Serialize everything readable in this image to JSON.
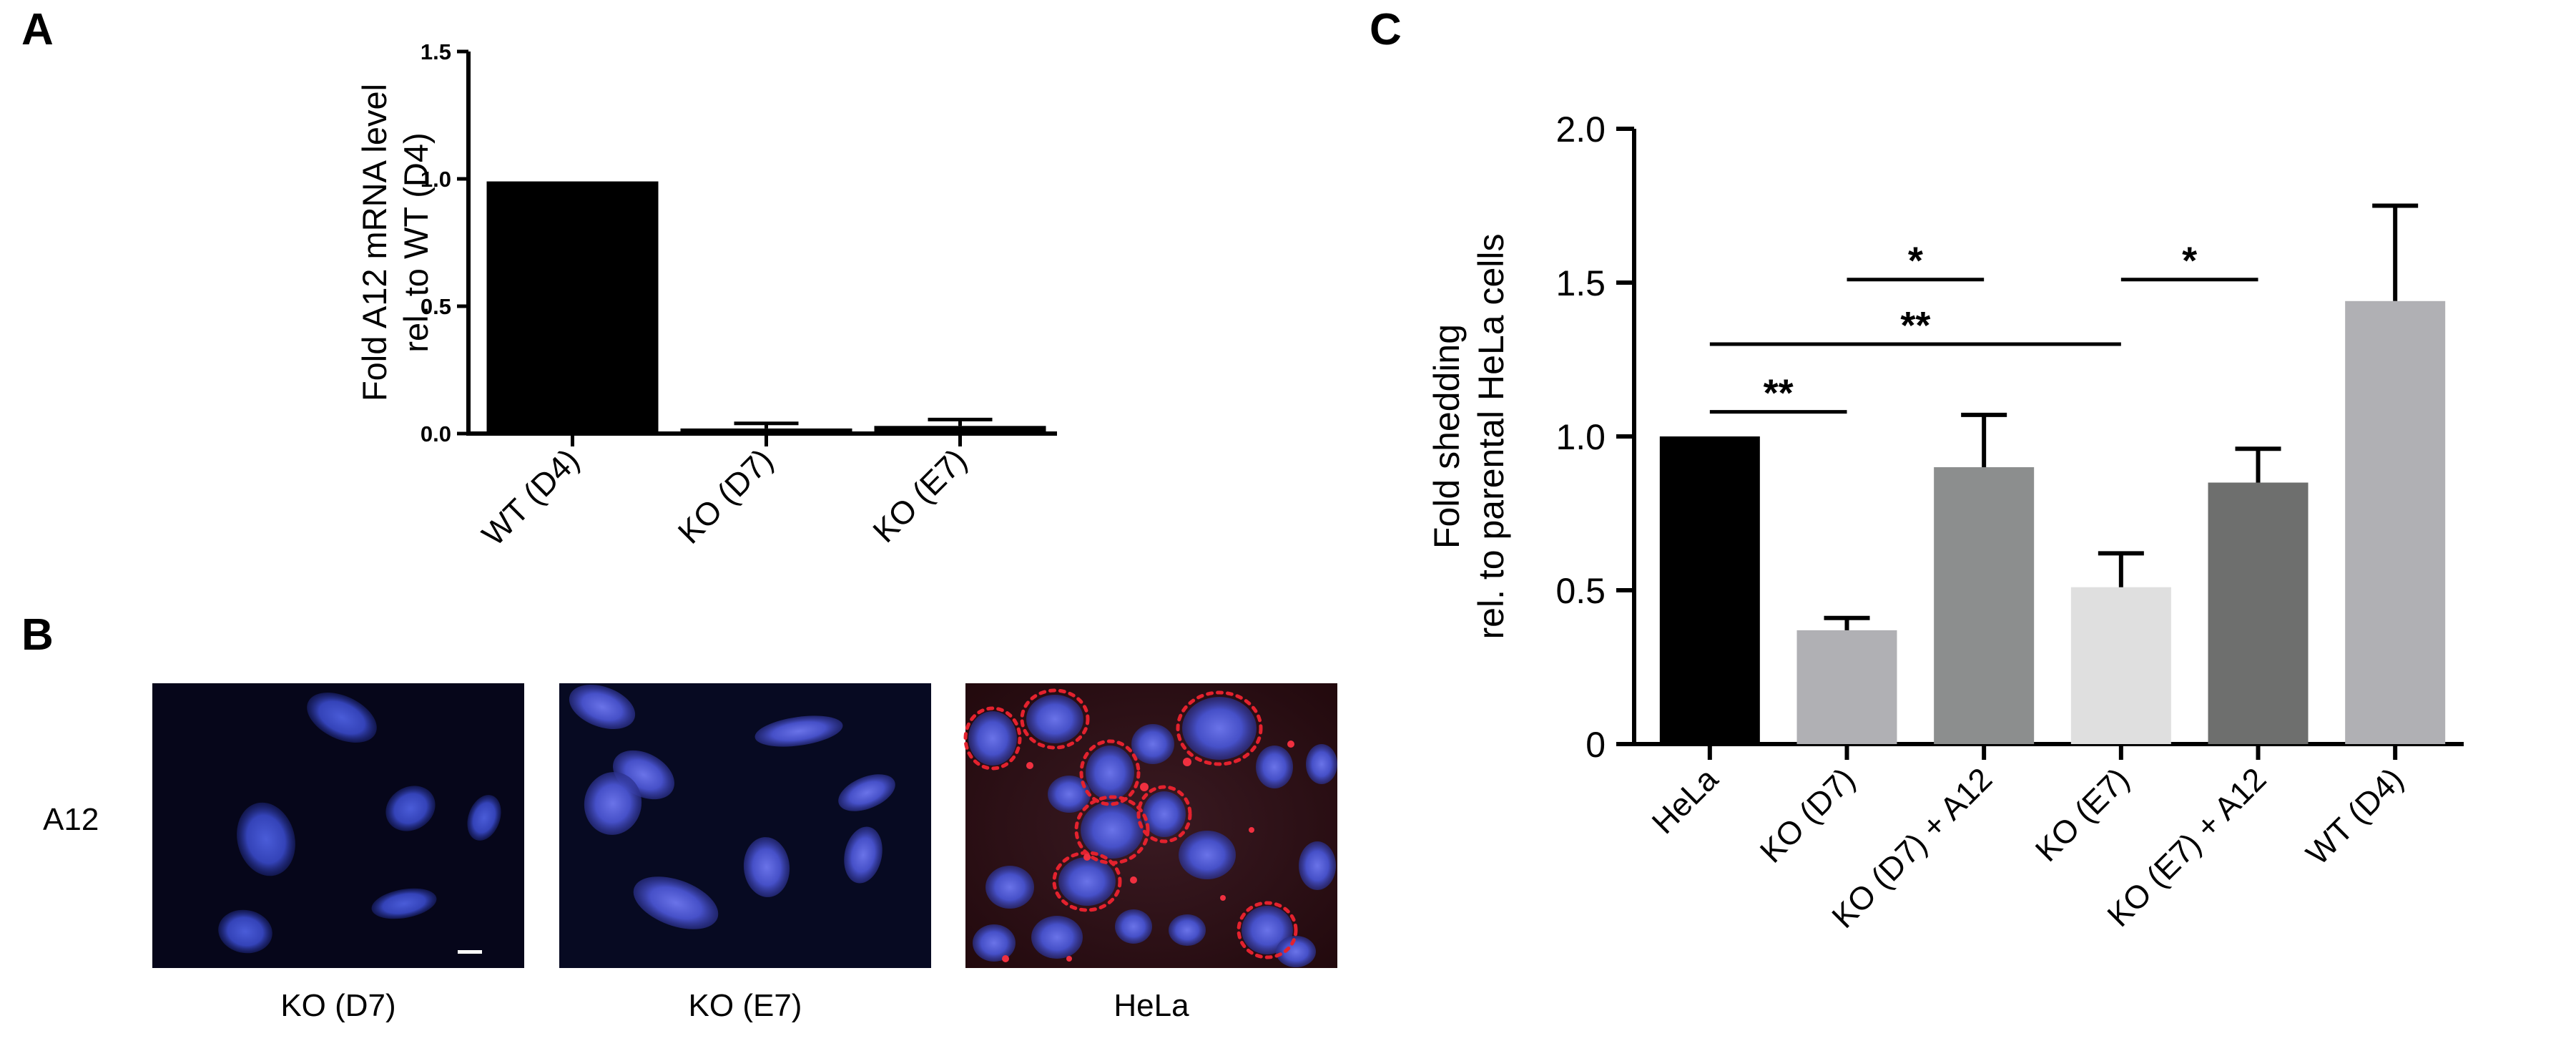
{
  "panels": {
    "a_letter": "A",
    "b_letter": "B",
    "c_letter": "C"
  },
  "chart_data": [
    {
      "panel": "A",
      "type": "bar",
      "categories": [
        "WT (D4)",
        "KO (D7)",
        "KO (E7)"
      ],
      "values": [
        0.99,
        0.02,
        0.03
      ],
      "errors": [
        0.0,
        0.02,
        0.025
      ],
      "ylabel_line1": "Fold A12 mRNA level",
      "ylabel_line2": "rel. to WT (D4)",
      "ylim": [
        0,
        1.5
      ],
      "yticks": [
        "0.0",
        "0.5",
        "1.0",
        "1.5"
      ],
      "bar_color": "#000000"
    },
    {
      "panel": "C",
      "type": "bar",
      "categories": [
        "HeLa",
        "KO (D7)",
        "KO (D7) + A12",
        "KO (E7)",
        "KO (E7) + A12",
        "WT (D4)"
      ],
      "values": [
        1.0,
        0.37,
        0.9,
        0.51,
        0.85,
        1.44
      ],
      "errors": [
        0.0,
        0.04,
        0.17,
        0.11,
        0.11,
        0.31
      ],
      "colors": [
        "#000000",
        "#b0b0b4",
        "#8c8e8e",
        "#dfdfdf",
        "#6e6f6e",
        "#b0b0b4"
      ],
      "ylabel_line1": "Fold shedding",
      "ylabel_line2": "rel. to parental HeLa cells",
      "ylim": [
        0,
        2.0
      ],
      "yticks": [
        "0",
        "0.5",
        "1.0",
        "1.5",
        "2.0"
      ],
      "significance": [
        {
          "from": 0,
          "to": 1,
          "label": "**"
        },
        {
          "from": 0,
          "to": 3,
          "label": "**"
        },
        {
          "from": 1,
          "to": 2,
          "label": "*"
        },
        {
          "from": 3,
          "to": 4,
          "label": "*"
        }
      ]
    }
  ],
  "microscopy": {
    "row_label": "A12",
    "images": [
      {
        "caption": "KO (D7)"
      },
      {
        "caption": "KO (E7)"
      },
      {
        "caption": "HeLa"
      }
    ]
  }
}
